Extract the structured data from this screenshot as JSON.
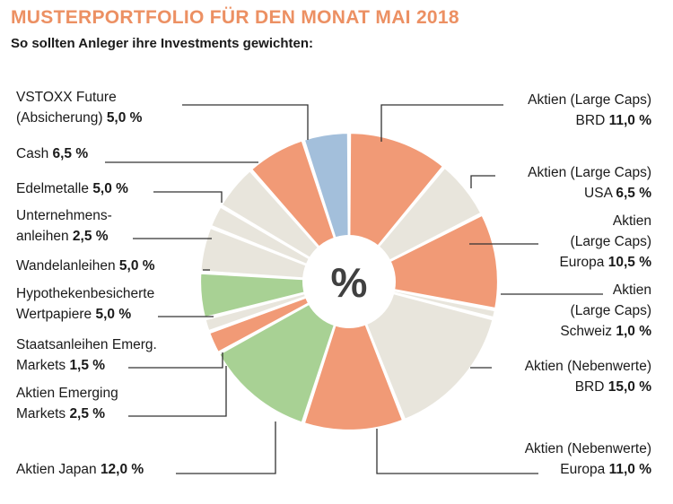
{
  "title": "MUSTERPORTFOLIO FÜR DEN MONAT MAI 2018",
  "subtitle": "So sollten Anleger ihre Investments gewichten:",
  "center_symbol": "%",
  "colors": {
    "title": "#ec9063",
    "salmon": "#f19a76",
    "beige": "#e8e5dc",
    "blue": "#a3bfdb",
    "green": "#a8d194",
    "center": "#ffffff",
    "center_text": "#404040"
  },
  "chart_data": {
    "type": "pie",
    "title": "MUSTERPORTFOLIO FÜR DEN MONAT MAI 2018",
    "subtitle": "So sollten Anleger ihre Investments gewichten:",
    "unit": "%",
    "slices": [
      {
        "lines": [
          "Aktien (Large Caps)",
          "BRD"
        ],
        "value": 11.0,
        "value_label": "11,0 %",
        "color": "salmon"
      },
      {
        "lines": [
          "Aktien (Large Caps)",
          "USA"
        ],
        "value": 6.5,
        "value_label": "6,5 %",
        "color": "beige"
      },
      {
        "lines": [
          "Aktien",
          "(Large Caps)",
          "Europa"
        ],
        "value": 10.5,
        "value_label": "10,5  %",
        "color": "salmon"
      },
      {
        "lines": [
          "Aktien",
          "(Large Caps)",
          "Schweiz"
        ],
        "value": 1.0,
        "value_label": "1,0 %",
        "color": "beige"
      },
      {
        "lines": [
          "Aktien (Nebenwerte)",
          "BRD"
        ],
        "value": 15.0,
        "value_label": "15,0 %",
        "color": "beige"
      },
      {
        "lines": [
          "Aktien (Nebenwerte)",
          "Europa"
        ],
        "value": 11.0,
        "value_label": "11,0 %",
        "color": "salmon"
      },
      {
        "lines": [
          "Aktien Japan"
        ],
        "value": 12.0,
        "value_label": "12,0 %",
        "color": "green"
      },
      {
        "lines": [
          "Aktien Emerging",
          "Markets"
        ],
        "value": 2.5,
        "value_label": "2,5 %",
        "color": "salmon"
      },
      {
        "lines": [
          "Staatsanleihen Emerg.",
          "Markets"
        ],
        "value": 1.5,
        "value_label": "1,5 %",
        "color": "beige"
      },
      {
        "lines": [
          "Hypothekenbesicherte",
          "Wertpapiere"
        ],
        "value": 5.0,
        "value_label": "5,0 %",
        "color": "green"
      },
      {
        "lines": [
          "Wandelanleihen"
        ],
        "value": 5.0,
        "value_label": "5,0 %",
        "color": "beige"
      },
      {
        "lines": [
          "Unternehmens-",
          "anleihen"
        ],
        "value": 2.5,
        "value_label": "2,5 %",
        "color": "beige"
      },
      {
        "lines": [
          "Edelmetalle"
        ],
        "value": 5.0,
        "value_label": "5,0 %",
        "color": "beige"
      },
      {
        "lines": [
          "Cash"
        ],
        "value": 6.5,
        "value_label": "6,5 %",
        "color": "salmon"
      },
      {
        "lines": [
          "VSTOXX Future",
          "(Absicherung)"
        ],
        "value": 5.0,
        "value_label": "5,0 %",
        "color": "blue"
      }
    ]
  }
}
